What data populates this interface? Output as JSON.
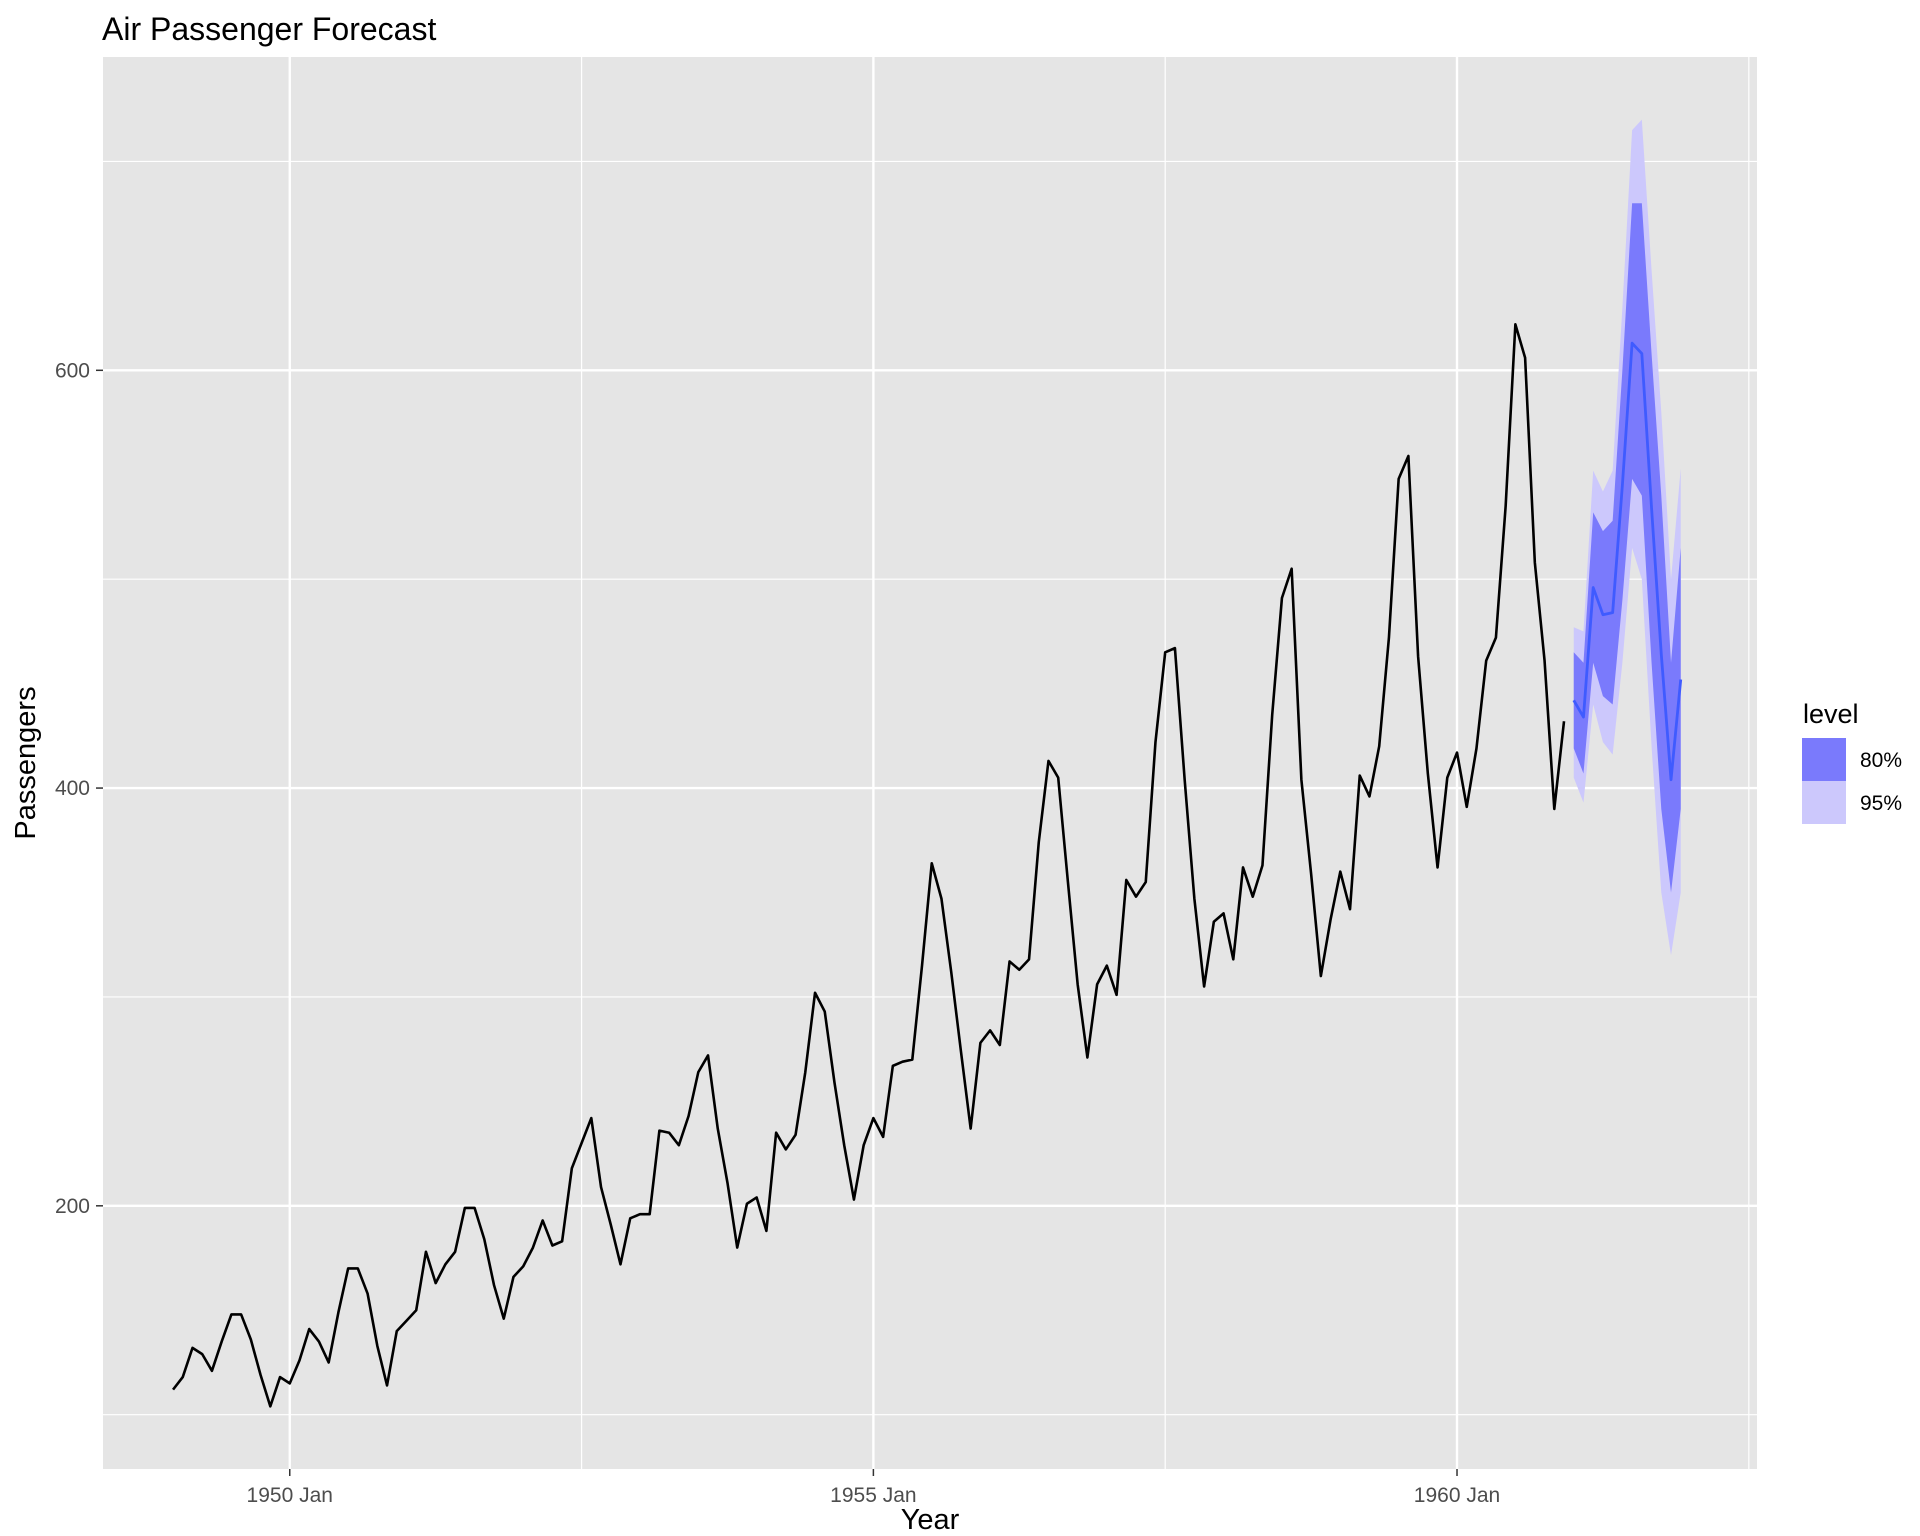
{
  "chart_data": {
    "type": "line",
    "title": "Air Passenger Forecast",
    "xlabel": "Year",
    "ylabel": "Passengers",
    "x_ticks": [
      {
        "value": 1950.0,
        "label": "1950 Jan"
      },
      {
        "value": 1955.0,
        "label": "1955 Jan"
      },
      {
        "value": 1960.0,
        "label": "1960 Jan"
      }
    ],
    "x_minor_ticks": [
      1952.5,
      1957.5,
      1962.5
    ],
    "y_ticks": [
      200,
      400,
      600
    ],
    "y_minor_ticks": [
      100,
      300,
      500,
      700
    ],
    "xlim": [
      1948.4,
      1962.57
    ],
    "ylim": [
      74,
      750
    ],
    "grid": true,
    "legend_position": "right",
    "series": [
      {
        "role": "observed",
        "start": 1949.0,
        "step": 0.08333333,
        "values": [
          112,
          118,
          132,
          129,
          121,
          135,
          148,
          148,
          136,
          119,
          104,
          118,
          115,
          126,
          141,
          135,
          125,
          149,
          170,
          170,
          158,
          133,
          114,
          140,
          145,
          150,
          178,
          163,
          172,
          178,
          199,
          199,
          184,
          162,
          146,
          166,
          171,
          180,
          193,
          181,
          183,
          218,
          230,
          242,
          209,
          191,
          172,
          194,
          196,
          196,
          236,
          235,
          229,
          243,
          264,
          272,
          237,
          211,
          180,
          201,
          204,
          188,
          235,
          227,
          234,
          264,
          302,
          293,
          259,
          229,
          203,
          229,
          242,
          233,
          267,
          269,
          270,
          315,
          364,
          347,
          312,
          274,
          237,
          278,
          284,
          277,
          317,
          313,
          318,
          374,
          413,
          405,
          355,
          306,
          271,
          306,
          315,
          301,
          356,
          348,
          355,
          422,
          465,
          467,
          404,
          347,
          305,
          336,
          340,
          318,
          362,
          348,
          363,
          435,
          491,
          505,
          404,
          359,
          310,
          337,
          360,
          342,
          406,
          396,
          420,
          472,
          548,
          559,
          463,
          407,
          362,
          405,
          417,
          391,
          419,
          461,
          472,
          535,
          622,
          606,
          508,
          461,
          390,
          432
        ],
        "color": "#000000"
      },
      {
        "role": "forecast",
        "start": 1961.0,
        "step": 0.08333333,
        "values": [
          442,
          434,
          496,
          483,
          484,
          545,
          613,
          608,
          534,
          464,
          404,
          452
        ],
        "color": "#3f5bff"
      }
    ],
    "intervals": [
      {
        "level": "80%",
        "color": "#7a7afc",
        "lower": [
          419,
          407,
          460,
          444,
          440,
          490,
          548,
          540,
          460,
          390,
          350,
          390
        ],
        "upper": [
          465,
          460,
          532,
          523,
          528,
          600,
          680,
          680,
          608,
          540,
          460,
          515
        ]
      },
      {
        "level": "95%",
        "color": "#ccc8fc",
        "lower": [
          405,
          393,
          440,
          422,
          416,
          460,
          515,
          500,
          420,
          350,
          320,
          350
        ],
        "upper": [
          477,
          475,
          552,
          542,
          552,
          630,
          715,
          720,
          648,
          580,
          500,
          553
        ]
      }
    ],
    "legend": {
      "title": "level",
      "entries": [
        "80%",
        "95%"
      ]
    }
  }
}
